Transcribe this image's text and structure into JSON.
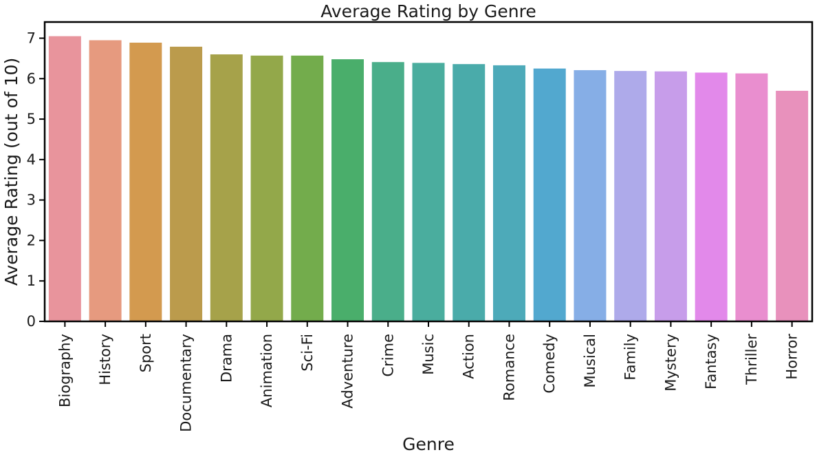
{
  "chart_data": {
    "type": "bar",
    "title": "Average Rating by Genre",
    "xlabel": "Genre",
    "ylabel": "Average Rating (out of 10)",
    "ylim": [
      0,
      7.4
    ],
    "yticks": [
      0,
      1,
      2,
      3,
      4,
      5,
      6,
      7
    ],
    "grid": false,
    "categories": [
      "Biography",
      "History",
      "Sport",
      "Documentary",
      "Drama",
      "Animation",
      "Sci-Fi",
      "Adventure",
      "Crime",
      "Music",
      "Action",
      "Romance",
      "Comedy",
      "Musical",
      "Family",
      "Mystery",
      "Fantasy",
      "Thriller",
      "Horror"
    ],
    "values": [
      7.05,
      6.95,
      6.89,
      6.79,
      6.6,
      6.57,
      6.57,
      6.48,
      6.41,
      6.39,
      6.36,
      6.33,
      6.25,
      6.21,
      6.19,
      6.18,
      6.15,
      6.13,
      5.7
    ],
    "colors": [
      "#e8949c",
      "#e69a7f",
      "#d39a4f",
      "#bb9b4c",
      "#a6a24a",
      "#93a84a",
      "#73ac4c",
      "#4aae6b",
      "#4aae8a",
      "#4aad9e",
      "#4aabaa",
      "#4daab9",
      "#52a8cf",
      "#86aee6",
      "#aeaaea",
      "#c79dea",
      "#e289ea",
      "#e98ecf",
      "#e891bc"
    ]
  }
}
